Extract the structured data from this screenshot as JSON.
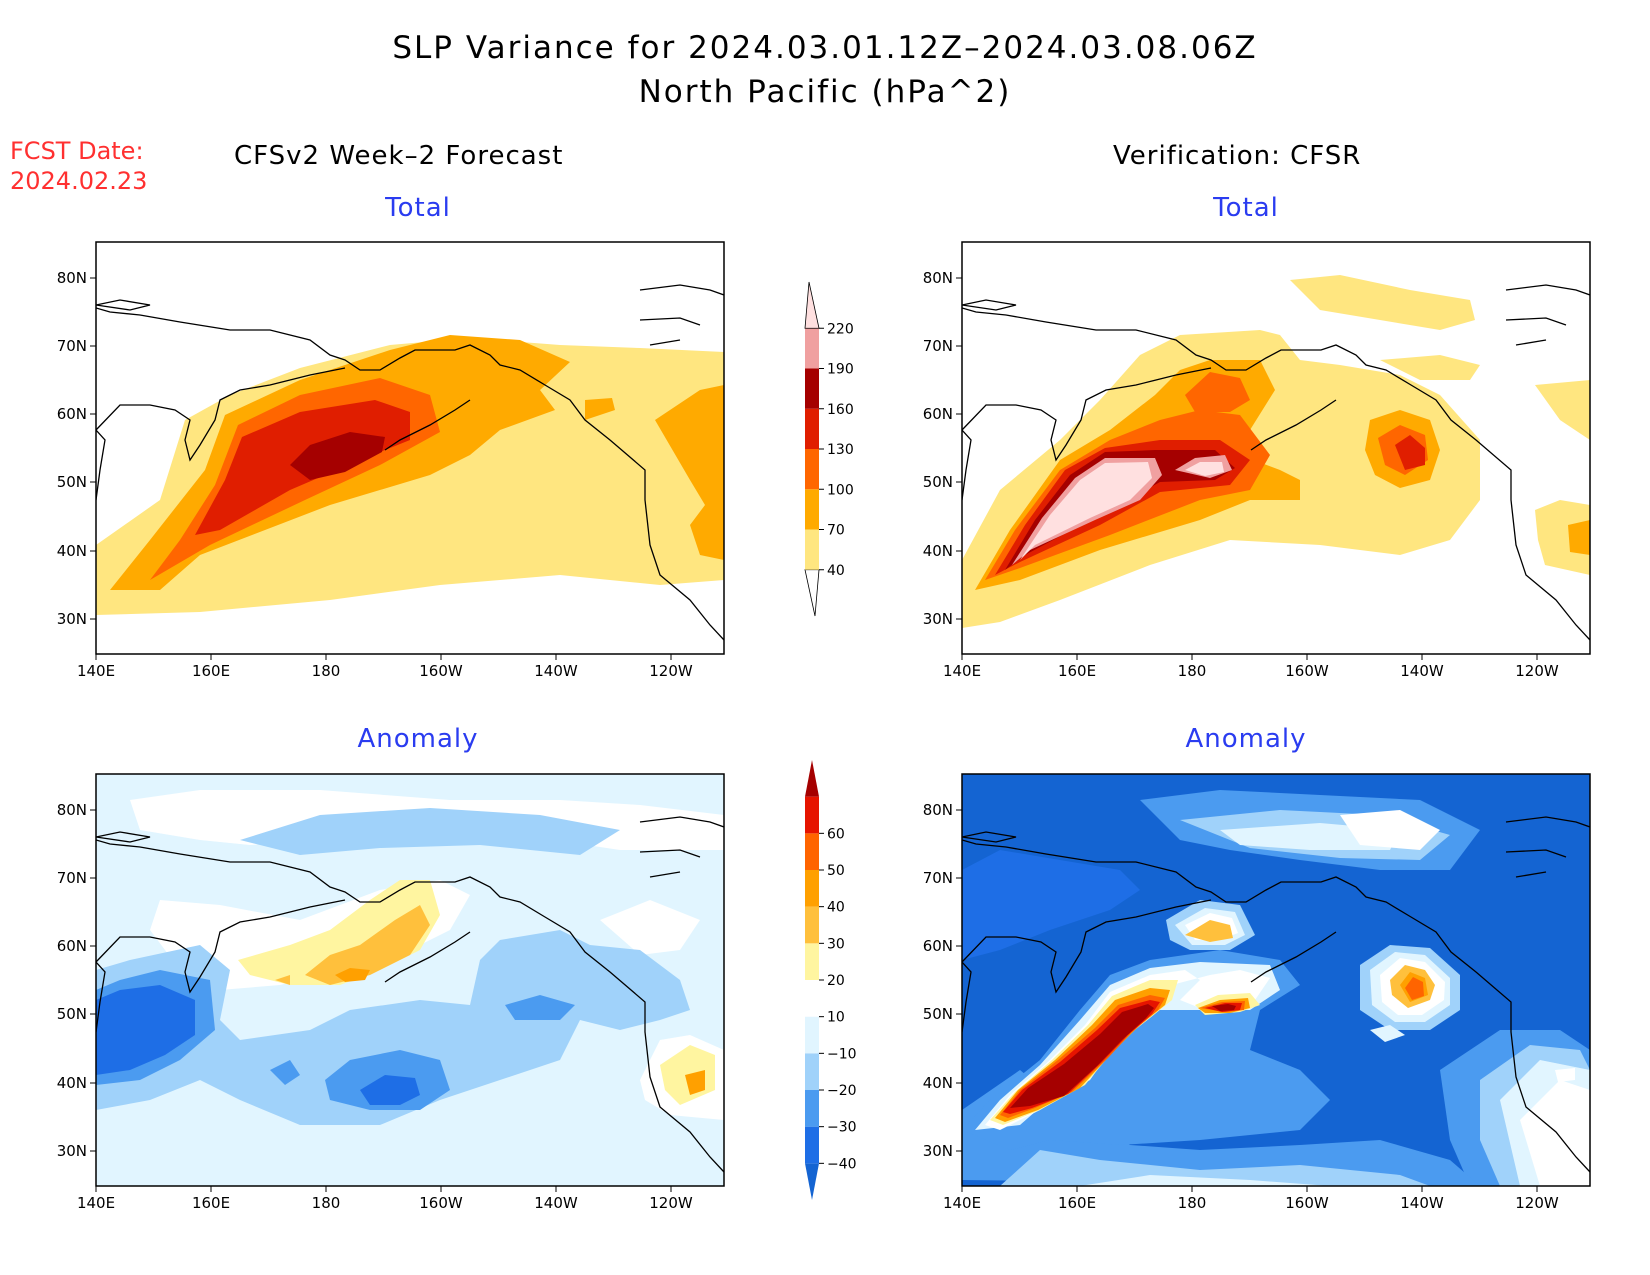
{
  "title": "SLP Variance for 2024.03.01.12Z–2024.03.08.06Z",
  "subtitle": "North Pacific (hPa^2)",
  "fcst_date_label": "FCST Date:",
  "fcst_date_value": "2024.02.23",
  "columns": [
    {
      "title": "CFSv2 Week–2 Forecast"
    },
    {
      "title": "Verification: CFSR"
    }
  ],
  "panels": [
    {
      "title": "Total",
      "kind": "total",
      "source": "forecast"
    },
    {
      "title": "Total",
      "kind": "total",
      "source": "verification"
    },
    {
      "title": "Anomaly",
      "kind": "anomaly",
      "source": "forecast"
    },
    {
      "title": "Anomaly",
      "kind": "anomaly",
      "source": "verification"
    }
  ],
  "lon_ticks": [
    "140E",
    "160E",
    "180",
    "160W",
    "140W",
    "120W"
  ],
  "lat_ticks": [
    "80N",
    "70N",
    "60N",
    "50N",
    "40N",
    "30N"
  ],
  "total_colorbar": {
    "labels": [
      "40",
      "70",
      "100",
      "130",
      "160",
      "190",
      "220"
    ],
    "colors": [
      "#ffffff",
      "#ffe680",
      "#ffaa00",
      "#ff6600",
      "#e01e00",
      "#a50000",
      "#f0a0a0",
      "#ffe0e0"
    ]
  },
  "anomaly_colorbar": {
    "labels": [
      "−40",
      "−30",
      "−20",
      "−10",
      "10",
      "20",
      "30",
      "40",
      "50",
      "60"
    ],
    "colors": [
      "#1464d2",
      "#1e6ee6",
      "#4b9bf0",
      "#a0d2fa",
      "#e1f5ff",
      "#ffffff",
      "#fff5a0",
      "#ffc03c",
      "#ffa000",
      "#ff6400",
      "#e61400",
      "#a50000"
    ]
  },
  "colors": {
    "title": "#000000",
    "fcst": "#ff3030",
    "panel_title": "#2a3cf0"
  }
}
